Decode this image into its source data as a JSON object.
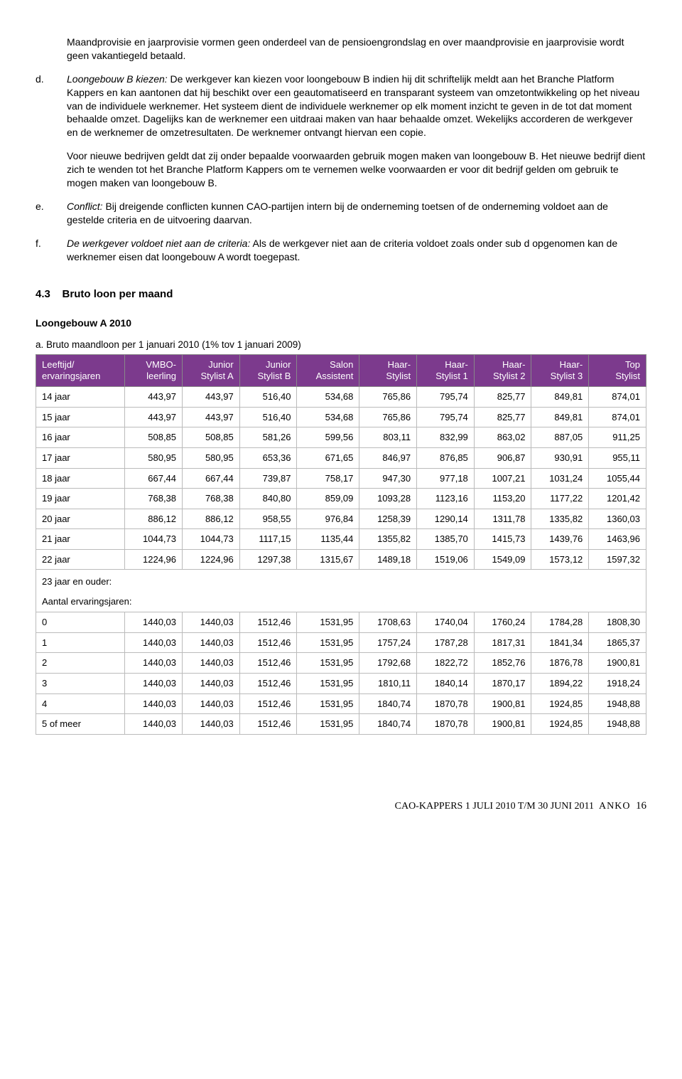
{
  "paragraphs": {
    "intro": "Maandprovisie en jaarprovisie vormen geen onderdeel van de pensioengrondslag en over maandprovisie en jaarprovisie wordt geen vakantiegeld betaald.",
    "d_marker": "d.",
    "d_lead_italic": "Loongebouw B kiezen:",
    "d_body": " De werkgever kan kiezen voor loongebouw B indien hij dit schriftelijk meldt aan het Branche Platform Kappers en kan aantonen dat hij beschikt over een geautomatiseerd en transparant systeem van omzetontwikkeling op het niveau van de individuele werknemer. Het systeem dient de individuele werknemer op elk moment inzicht te geven in de tot dat moment behaalde omzet. Dagelijks kan de werknemer een uitdraai maken van haar behaalde omzet. Wekelijks accorderen de werkgever en de werknemer de omzetresultaten. De werknemer ontvangt hiervan een copie.",
    "d_sub": "Voor nieuwe bedrijven geldt dat zij onder bepaalde voorwaarden gebruik mogen maken van loongebouw B. Het nieuwe bedrijf dient zich te wenden tot het Branche Platform Kappers om te vernemen welke voorwaarden er voor dit bedrijf gelden om gebruik te mogen maken van loongebouw B.",
    "e_marker": "e.",
    "e_lead_italic": "Conflict:",
    "e_body": " Bij dreigende conflicten kunnen CAO-partijen intern bij de onderneming toetsen of de onderneming voldoet aan de gestelde criteria en de uitvoering daarvan.",
    "f_marker": "f.",
    "f_lead_italic": "De werkgever voldoet niet aan de criteria:",
    "f_body": " Als de werkgever niet aan de criteria voldoet zoals onder sub d opgenomen kan de werknemer eisen dat loongebouw A wordt toegepast."
  },
  "section": {
    "number": "4.3",
    "title": "Bruto loon per maand",
    "subheading": "Loongebouw A 2010"
  },
  "table": {
    "caption": "a. Bruto maandloon per 1 januari 2010 (1% tov 1 januari 2009)",
    "header_bg": "#7c3a8d",
    "columns": [
      "Leeftijd/\nervaringsjaren",
      "VMBO-\nleerling",
      "Junior\nStylist A",
      "Junior\nStylist B",
      "Salon\nAssistent",
      "Haar-\nStylist",
      "Haar-\nStylist 1",
      "Haar-\nStylist 2",
      "Haar-\nStylist 3",
      "Top\nStylist"
    ],
    "rows": [
      [
        "14 jaar",
        "443,97",
        "443,97",
        "516,40",
        "534,68",
        "765,86",
        "795,74",
        "825,77",
        "849,81",
        "874,01"
      ],
      [
        "15 jaar",
        "443,97",
        "443,97",
        "516,40",
        "534,68",
        "765,86",
        "795,74",
        "825,77",
        "849,81",
        "874,01"
      ],
      [
        "16 jaar",
        "508,85",
        "508,85",
        "581,26",
        "599,56",
        "803,11",
        "832,99",
        "863,02",
        "887,05",
        "911,25"
      ],
      [
        "17 jaar",
        "580,95",
        "580,95",
        "653,36",
        "671,65",
        "846,97",
        "876,85",
        "906,87",
        "930,91",
        "955,11"
      ],
      [
        "18 jaar",
        "667,44",
        "667,44",
        "739,87",
        "758,17",
        "947,30",
        "977,18",
        "1007,21",
        "1031,24",
        "1055,44"
      ],
      [
        "19 jaar",
        "768,38",
        "768,38",
        "840,80",
        "859,09",
        "1093,28",
        "1123,16",
        "1153,20",
        "1177,22",
        "1201,42"
      ],
      [
        "20 jaar",
        "886,12",
        "886,12",
        "958,55",
        "976,84",
        "1258,39",
        "1290,14",
        "1311,78",
        "1335,82",
        "1360,03"
      ],
      [
        "21 jaar",
        "1044,73",
        "1044,73",
        "1117,15",
        "1135,44",
        "1355,82",
        "1385,70",
        "1415,73",
        "1439,76",
        "1463,96"
      ],
      [
        "22 jaar",
        "1224,96",
        "1224,96",
        "1297,38",
        "1315,67",
        "1489,18",
        "1519,06",
        "1549,09",
        "1573,12",
        "1597,32"
      ]
    ],
    "exp_label_1": "23 jaar en ouder:",
    "exp_label_2": "Aantal ervaringsjaren:",
    "exp_rows": [
      [
        "0",
        "1440,03",
        "1440,03",
        "1512,46",
        "1531,95",
        "1708,63",
        "1740,04",
        "1760,24",
        "1784,28",
        "1808,30"
      ],
      [
        "1",
        "1440,03",
        "1440,03",
        "1512,46",
        "1531,95",
        "1757,24",
        "1787,28",
        "1817,31",
        "1841,34",
        "1865,37"
      ],
      [
        "2",
        "1440,03",
        "1440,03",
        "1512,46",
        "1531,95",
        "1792,68",
        "1822,72",
        "1852,76",
        "1876,78",
        "1900,81"
      ],
      [
        "3",
        "1440,03",
        "1440,03",
        "1512,46",
        "1531,95",
        "1810,11",
        "1840,14",
        "1870,17",
        "1894,22",
        "1918,24"
      ],
      [
        "4",
        "1440,03",
        "1440,03",
        "1512,46",
        "1531,95",
        "1840,74",
        "1870,78",
        "1900,81",
        "1924,85",
        "1948,88"
      ],
      [
        "5 of meer",
        "1440,03",
        "1440,03",
        "1512,46",
        "1531,95",
        "1840,74",
        "1870,78",
        "1900,81",
        "1924,85",
        "1948,88"
      ]
    ]
  },
  "footer": {
    "text": "CAO-KAPPERS 1 JULI 2010 T/M 30 JUNI 2011",
    "logo": "ANKO",
    "page": "16"
  }
}
